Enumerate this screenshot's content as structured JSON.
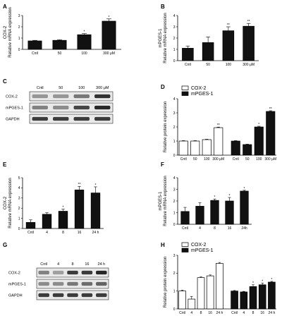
{
  "chart_data": [
    {
      "panel": "A",
      "type": "bar",
      "ylabel_lines": [
        "COX-2",
        "Relative mRNA expression"
      ],
      "categories": [
        "Cntl",
        "50",
        "100",
        "300 μM"
      ],
      "values": [
        0.75,
        0.8,
        1.3,
        2.5
      ],
      "errors": [
        0.05,
        0.05,
        0.1,
        0.2
      ],
      "sig": [
        "",
        "",
        "*",
        "*"
      ],
      "ylim": [
        0,
        3
      ],
      "yticks": [
        "0",
        "1",
        "2",
        "3"
      ],
      "bar_color": "#111111"
    },
    {
      "panel": "B",
      "type": "bar",
      "ylabel_lines": [
        "mPGES-1",
        "Relative mRNA expression"
      ],
      "categories": [
        "Cntl",
        "50",
        "100",
        "300 μM"
      ],
      "values": [
        1.1,
        1.6,
        2.65,
        3.05
      ],
      "errors": [
        0.2,
        0.5,
        0.35,
        0.25
      ],
      "sig": [
        "",
        "",
        "**",
        "**"
      ],
      "ylim": [
        0,
        4
      ],
      "yticks": [
        "0",
        "1",
        "2",
        "3",
        "4"
      ],
      "bar_color": "#111111"
    },
    {
      "panel": "D",
      "type": "bar",
      "ylabel_lines": [
        "Relative protein expression"
      ],
      "categories": [
        "Cntl",
        "50",
        "100",
        "300 μM"
      ],
      "series": [
        {
          "name": "COX-2",
          "values": [
            1.0,
            1.0,
            1.1,
            1.95
          ],
          "errors": [
            0.03,
            0.03,
            0.03,
            0.04
          ],
          "sig": [
            "",
            "",
            "",
            "**"
          ],
          "fill": "#ffffff"
        },
        {
          "name": "mPGES-1",
          "values": [
            1.0,
            0.75,
            2.0,
            3.1
          ],
          "errors": [
            0.03,
            0.03,
            0.05,
            0.05
          ],
          "sig": [
            "",
            "",
            "*",
            "**"
          ],
          "fill": "#111111"
        }
      ],
      "ylim": [
        0,
        4
      ],
      "yticks": [
        "0",
        "1",
        "2",
        "3",
        "4"
      ],
      "legend": "top-left"
    },
    {
      "panel": "E",
      "type": "bar",
      "ylabel_lines": [
        "COX-2",
        "Relative mRNA expression"
      ],
      "categories": [
        "Cntl",
        "4",
        "8",
        "16",
        "24 h"
      ],
      "values": [
        0.6,
        1.4,
        1.7,
        3.8,
        3.5
      ],
      "errors": [
        0.25,
        0.15,
        0.2,
        0.35,
        0.6
      ],
      "sig": [
        "",
        "",
        "*",
        "**",
        "*"
      ],
      "ylim": [
        0,
        5
      ],
      "yticks": [
        "0",
        "1",
        "2",
        "3",
        "4",
        "5"
      ],
      "bar_color": "#111111"
    },
    {
      "panel": "F",
      "type": "bar",
      "ylabel_lines": [
        "mPGES-1",
        "Relative mRNA expression"
      ],
      "categories": [
        "Cntl",
        "4",
        "8",
        "16",
        "24h"
      ],
      "values": [
        1.1,
        1.55,
        2.05,
        2.0,
        2.85
      ],
      "errors": [
        0.35,
        0.3,
        0.12,
        0.3,
        0.07
      ],
      "sig": [
        "",
        "",
        "*",
        "*",
        "*"
      ],
      "ylim": [
        0,
        4
      ],
      "yticks": [
        "0",
        "1",
        "2",
        "3",
        "4"
      ],
      "bar_color": "#111111"
    },
    {
      "panel": "H",
      "type": "bar",
      "ylabel_lines": [
        "Relative protein expression"
      ],
      "categories": [
        "Cntl",
        "4",
        "8",
        "16",
        "24 h"
      ],
      "series": [
        {
          "name": "COX-2",
          "values": [
            1.0,
            0.55,
            1.75,
            1.85,
            2.55
          ],
          "errors": [
            0.05,
            0.15,
            0.04,
            0.05,
            0.05
          ],
          "sig": [
            "",
            "",
            "",
            "",
            ""
          ],
          "fill": "#ffffff"
        },
        {
          "name": "mPGES-1",
          "values": [
            1.0,
            0.95,
            1.25,
            1.35,
            1.5
          ],
          "errors": [
            0.03,
            0.03,
            0.1,
            0.1,
            0.04
          ],
          "sig": [
            "",
            "",
            "*",
            "*",
            "*"
          ],
          "fill": "#111111"
        }
      ],
      "ylim": [
        0,
        3
      ],
      "yticks": [
        "0",
        "1",
        "2",
        "3"
      ],
      "legend": "top-left"
    }
  ],
  "blots": [
    {
      "panel": "C",
      "lane_labels": [
        "Cntl",
        "50",
        "100",
        "300 μM"
      ],
      "rows": [
        {
          "label": "COX-2",
          "intensities": [
            0.35,
            0.35,
            0.5,
            0.85
          ]
        },
        {
          "label": "mPGES-1",
          "intensities": [
            0.45,
            0.4,
            0.75,
            0.9
          ]
        },
        {
          "label": "GAPDH",
          "intensities": [
            0.8,
            0.8,
            0.8,
            0.8
          ]
        }
      ]
    },
    {
      "panel": "G",
      "lane_labels": [
        "Cntl",
        "4",
        "8",
        "16",
        "24 h"
      ],
      "rows": [
        {
          "label": "COX-2",
          "intensities": [
            0.45,
            0.3,
            0.8,
            0.8,
            0.9
          ]
        },
        {
          "label": "mPGES-1",
          "intensities": [
            0.4,
            0.4,
            0.5,
            0.55,
            0.6
          ]
        },
        {
          "label": "GAPDH",
          "intensities": [
            0.8,
            0.8,
            0.8,
            0.8,
            0.8
          ]
        }
      ]
    }
  ]
}
